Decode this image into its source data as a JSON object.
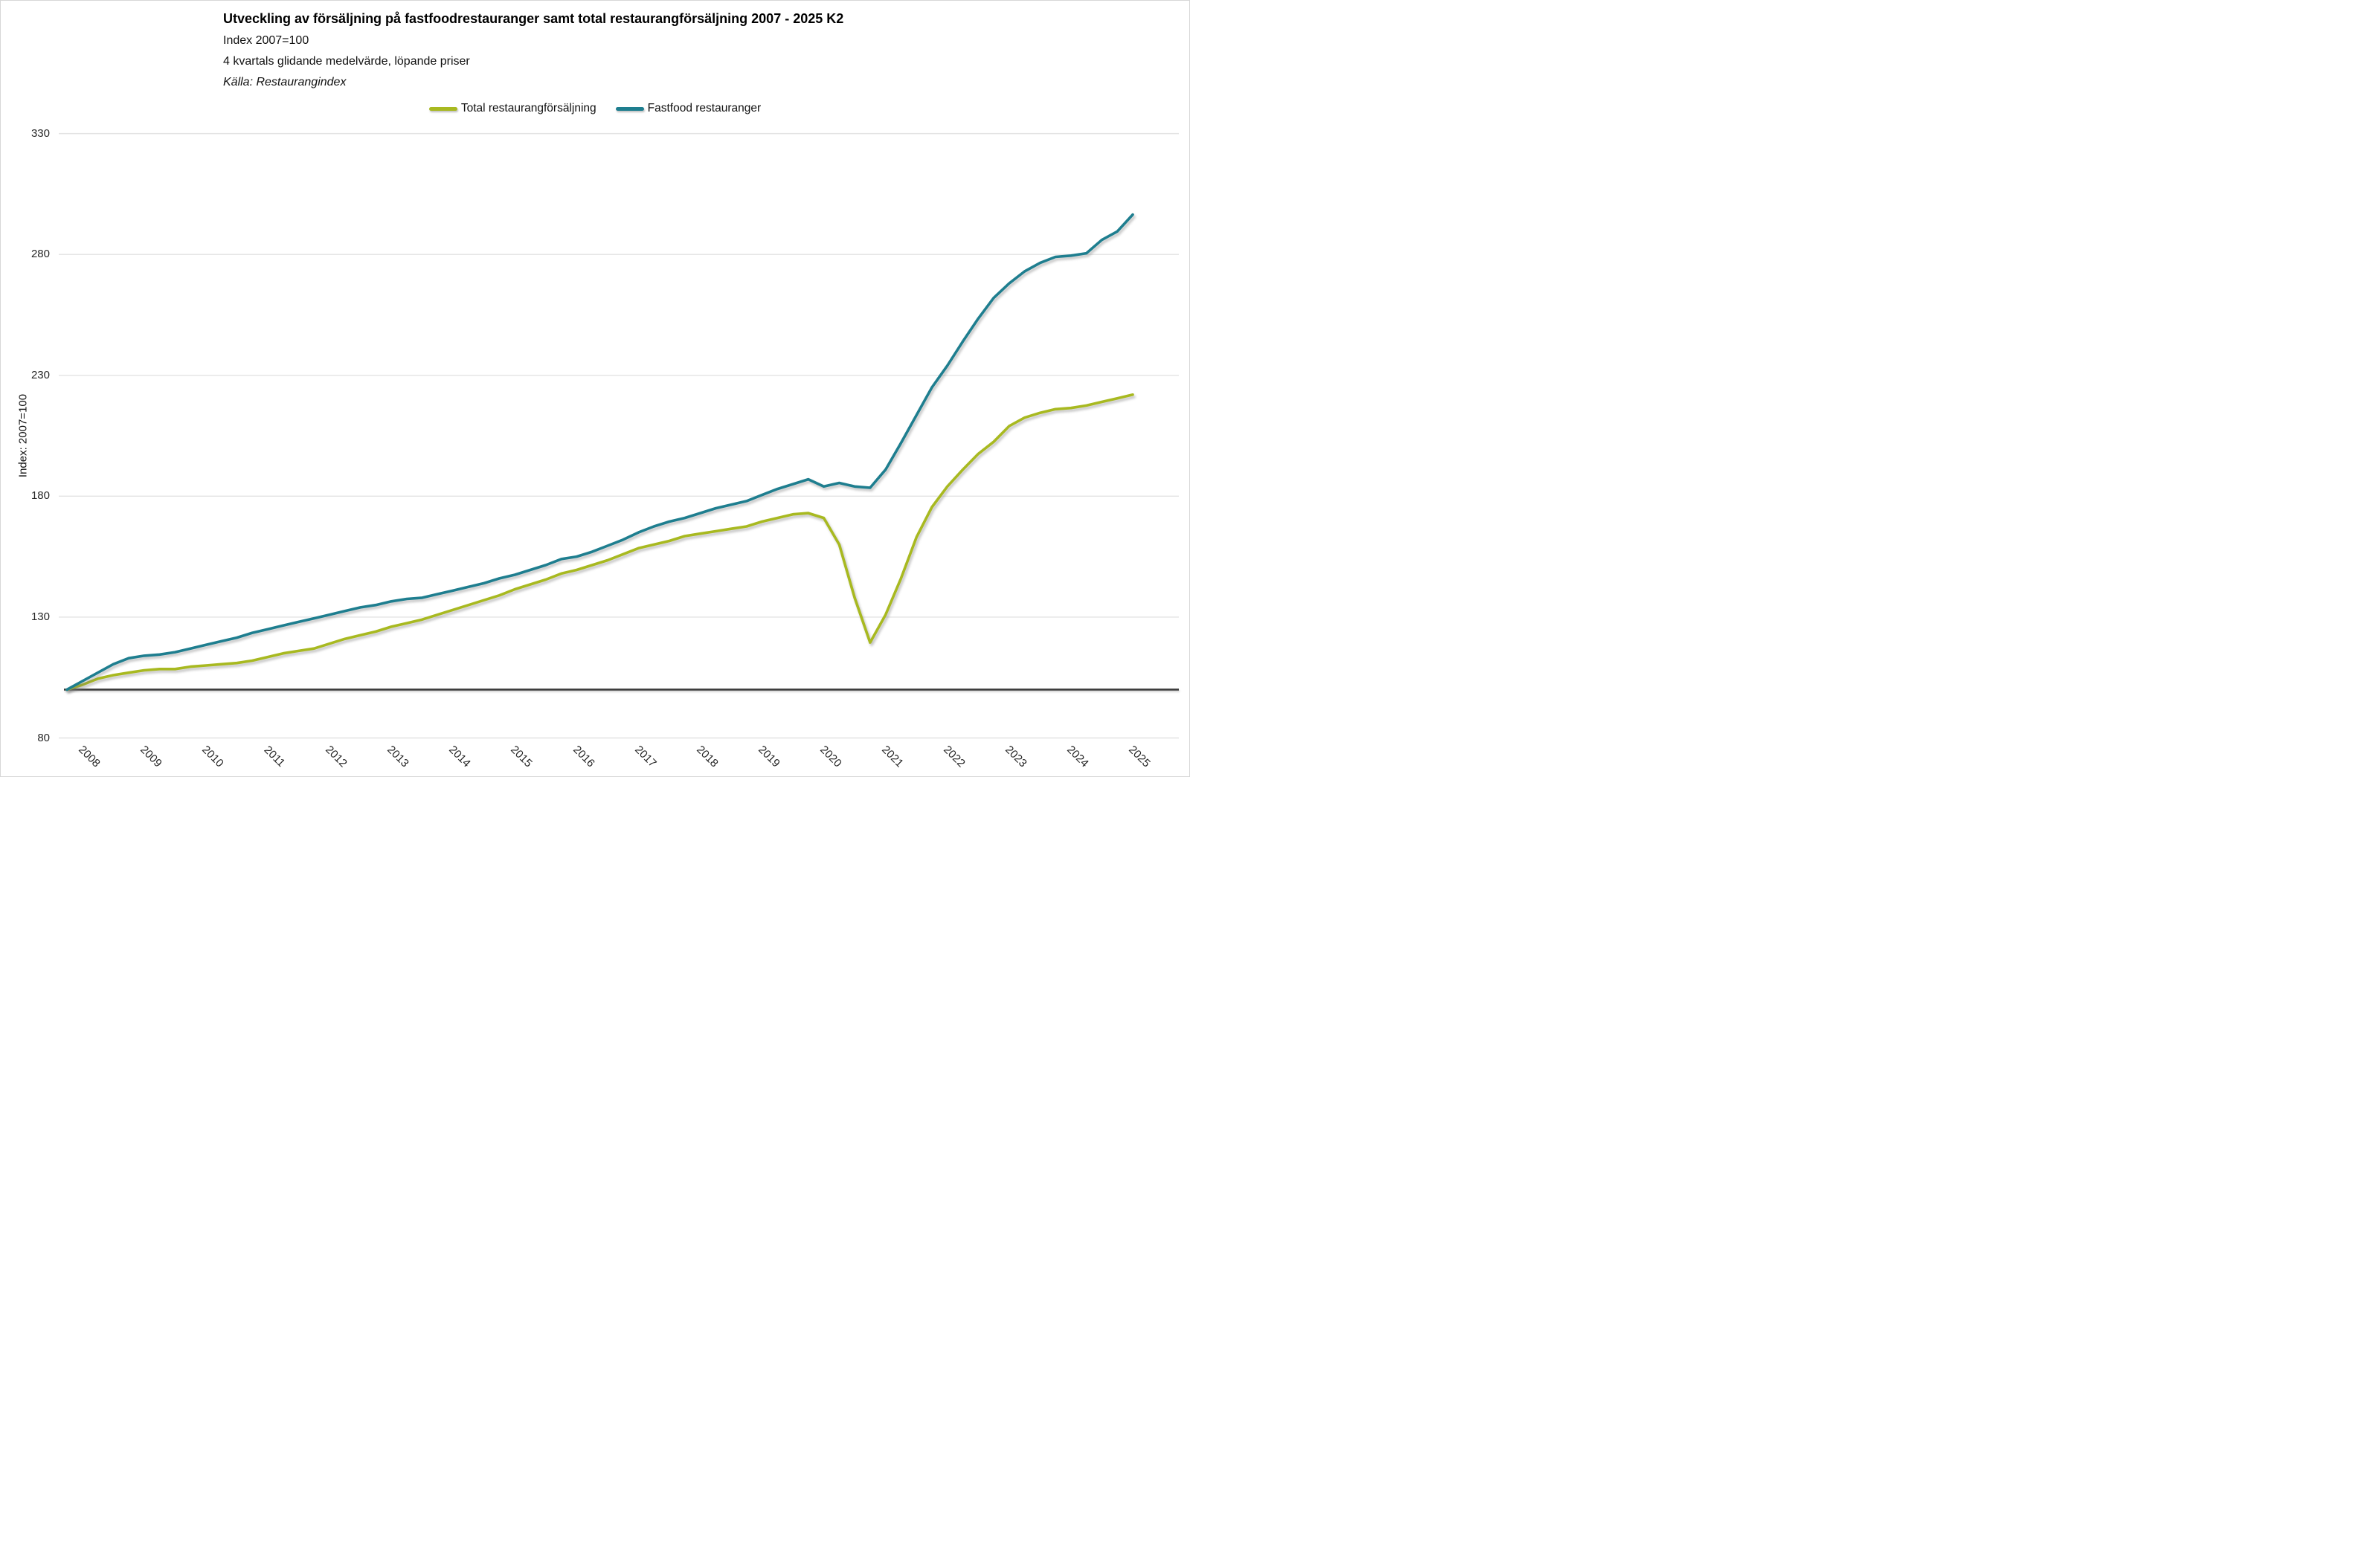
{
  "header": {
    "title": "Utveckling av försäljning på fastfoodrestauranger samt total restaurangförsäljning 2007 - 2025 K2",
    "subtitle_index": "Index 2007=100",
    "subtitle_method": "4 kvartals glidande medelvärde, löpande priser",
    "source": "Källa: Restaurangindex"
  },
  "legend": {
    "items": [
      {
        "label": "Total restaurangförsäljning",
        "color": "#a8b920"
      },
      {
        "label": "Fastfood restauranger",
        "color": "#1e7e8f"
      }
    ]
  },
  "y_axis": {
    "label": "Index: 2007=100",
    "ticks": [
      330,
      280,
      230,
      180,
      130,
      80
    ]
  },
  "x_axis": {
    "tick_years": [
      "2008",
      "2009",
      "2010",
      "2011",
      "2012",
      "2013",
      "2014",
      "2015",
      "2016",
      "2017",
      "2018",
      "2019",
      "2020",
      "2021",
      "2022",
      "2023",
      "2024",
      "2025"
    ]
  },
  "colors": {
    "grid": "#e3e3e3",
    "baseline": "#3a3a3a",
    "background": "#ffffff",
    "frame_border": "#d7d7d7",
    "total_series": "#a8b920",
    "fastfood_series": "#1e7e8f"
  },
  "chart_data": {
    "type": "line",
    "title": "Utveckling av försäljning på fastfoodrestauranger samt total restaurangförsäljning 2007 - 2025 K2",
    "ylabel": "Index: 2007=100",
    "ylim": [
      80,
      330
    ],
    "grid": "horizontal",
    "legend_position": "top",
    "baseline_value": 100,
    "x": [
      "2008 K1",
      "2008 K2",
      "2008 K3",
      "2008 K4",
      "2009 K1",
      "2009 K2",
      "2009 K3",
      "2009 K4",
      "2010 K1",
      "2010 K2",
      "2010 K3",
      "2010 K4",
      "2011 K1",
      "2011 K2",
      "2011 K3",
      "2011 K4",
      "2012 K1",
      "2012 K2",
      "2012 K3",
      "2012 K4",
      "2013 K1",
      "2013 K2",
      "2013 K3",
      "2013 K4",
      "2014 K1",
      "2014 K2",
      "2014 K3",
      "2014 K4",
      "2015 K1",
      "2015 K2",
      "2015 K3",
      "2015 K4",
      "2016 K1",
      "2016 K2",
      "2016 K3",
      "2016 K4",
      "2017 K1",
      "2017 K2",
      "2017 K3",
      "2017 K4",
      "2018 K1",
      "2018 K2",
      "2018 K3",
      "2018 K4",
      "2019 K1",
      "2019 K2",
      "2019 K3",
      "2019 K4",
      "2020 K1",
      "2020 K2",
      "2020 K3",
      "2020 K4",
      "2021 K1",
      "2021 K2",
      "2021 K3",
      "2021 K4",
      "2022 K1",
      "2022 K2",
      "2022 K3",
      "2022 K4",
      "2023 K1",
      "2023 K2",
      "2023 K3",
      "2023 K4",
      "2024 K1",
      "2024 K2",
      "2024 K3",
      "2024 K4",
      "2025 K1",
      "2025 K2"
    ],
    "series": [
      {
        "name": "Total restaurangförsäljning",
        "color": "#a8b920",
        "values": [
          100,
          102,
          104.5,
          106,
          107,
          108,
          108.5,
          108.5,
          109.5,
          110,
          110.5,
          111,
          112,
          113.5,
          115,
          116,
          117,
          119,
          121,
          122.5,
          124,
          126,
          127.5,
          129,
          131,
          133,
          135,
          137,
          139,
          141.5,
          143.5,
          145.5,
          148,
          149.5,
          151.5,
          153.5,
          156,
          158.5,
          160,
          161.5,
          163.5,
          164.5,
          165.5,
          166.5,
          167.5,
          169.5,
          171,
          172.5,
          173,
          171,
          160,
          138,
          119.5,
          131,
          146,
          163,
          175.5,
          184,
          191,
          197.5,
          202.5,
          209,
          212.5,
          214.5,
          216,
          216.5,
          217.5,
          219,
          220.5,
          222
        ]
      },
      {
        "name": "Fastfood restauranger",
        "color": "#1e7e8f",
        "values": [
          100,
          103.5,
          107,
          110.5,
          113,
          114,
          114.5,
          115.5,
          117,
          118.5,
          120,
          121.5,
          123.5,
          125,
          126.5,
          128,
          129.5,
          131,
          132.5,
          134,
          135,
          136.5,
          137.5,
          138,
          139.5,
          141,
          142.5,
          144,
          146,
          147.5,
          149.5,
          151.5,
          154,
          155,
          157,
          159.5,
          162,
          165,
          167.5,
          169.5,
          171,
          173,
          175,
          176.5,
          178,
          180.5,
          183,
          185,
          187,
          184,
          185.5,
          184,
          183.5,
          191,
          202,
          213.5,
          225,
          234,
          244,
          253.5,
          262,
          268,
          273,
          276.5,
          279,
          279.5,
          280.5,
          286,
          289.5,
          296.5
        ]
      }
    ]
  }
}
